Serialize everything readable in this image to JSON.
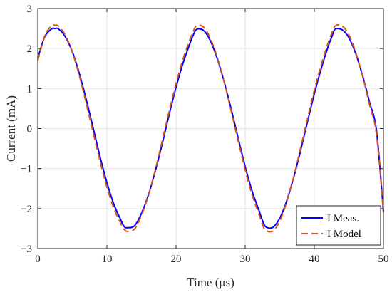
{
  "chart_data": {
    "type": "line",
    "title": "",
    "xlabel": "Time (μs)",
    "ylabel": "Current (mA)",
    "xlim": [
      0,
      50
    ],
    "ylim": [
      -3,
      3
    ],
    "xticks": [
      "0",
      "10",
      "20",
      "30",
      "40",
      "50"
    ],
    "yticks": [
      "3",
      "2",
      "1",
      "0",
      "−1",
      "−2",
      "−3"
    ],
    "grid": true,
    "legend_position": "bottom-right",
    "series": [
      {
        "name": "I Meas.",
        "color": "#0000ff",
        "style": "solid",
        "x": [
          0,
          1,
          2,
          2.5,
          3,
          4,
          5,
          6,
          7,
          8,
          9,
          10,
          11,
          12,
          12.5,
          13,
          14,
          15,
          16,
          17,
          18,
          19,
          20,
          21,
          22,
          22.5,
          23,
          24,
          25,
          26,
          27,
          28,
          29,
          30,
          31,
          32,
          32.5,
          33,
          34,
          35,
          36,
          37,
          38,
          39,
          40,
          41,
          42,
          42.5,
          43,
          44,
          45,
          46,
          47,
          48,
          49,
          50
        ],
        "y": [
          1.76,
          2.29,
          2.49,
          2.5,
          2.49,
          2.29,
          1.92,
          1.38,
          0.73,
          0.02,
          -0.7,
          -1.35,
          -1.89,
          -2.28,
          -2.45,
          -2.48,
          -2.43,
          -2.12,
          -1.66,
          -1.06,
          -0.38,
          0.35,
          1.03,
          1.63,
          2.12,
          2.34,
          2.48,
          2.45,
          2.18,
          1.73,
          1.14,
          0.47,
          -0.25,
          -0.95,
          -1.56,
          -2.05,
          -2.3,
          -2.46,
          -2.47,
          -2.24,
          -1.81,
          -1.23,
          -0.56,
          0.16,
          0.87,
          1.5,
          2.05,
          2.28,
          2.48,
          2.47,
          2.27,
          1.87,
          1.31,
          0.65,
          -0.06,
          -2.07
        ]
      },
      {
        "name": "I Model",
        "color": "#d95319",
        "style": "dashed",
        "x": [
          0,
          1,
          2,
          2.5,
          3,
          4,
          5,
          6,
          7,
          8,
          9,
          10,
          11,
          12,
          12.5,
          13,
          14,
          15,
          16,
          17,
          18,
          19,
          20,
          21,
          22,
          22.5,
          23,
          24,
          25,
          26,
          27,
          28,
          29,
          30,
          31,
          32,
          32.5,
          33,
          34,
          35,
          36,
          37,
          38,
          39,
          40,
          41,
          42,
          42.5,
          43,
          44,
          45,
          46,
          47,
          48,
          49,
          50
        ],
        "y": [
          1.7,
          2.31,
          2.57,
          2.58,
          2.56,
          2.33,
          1.91,
          1.33,
          0.64,
          -0.09,
          -0.81,
          -1.46,
          -1.99,
          -2.37,
          -2.52,
          -2.57,
          -2.51,
          -2.17,
          -1.67,
          -1.03,
          -0.31,
          0.43,
          1.12,
          1.73,
          2.22,
          2.43,
          2.58,
          2.53,
          2.24,
          1.76,
          1.14,
          0.42,
          -0.32,
          -1.03,
          -1.66,
          -2.14,
          -2.4,
          -2.55,
          -2.56,
          -2.31,
          -1.84,
          -1.22,
          -0.5,
          0.24,
          0.96,
          1.59,
          2.14,
          2.37,
          2.56,
          2.57,
          2.34,
          1.9,
          1.3,
          0.59,
          -0.15,
          -2.1
        ]
      }
    ]
  }
}
